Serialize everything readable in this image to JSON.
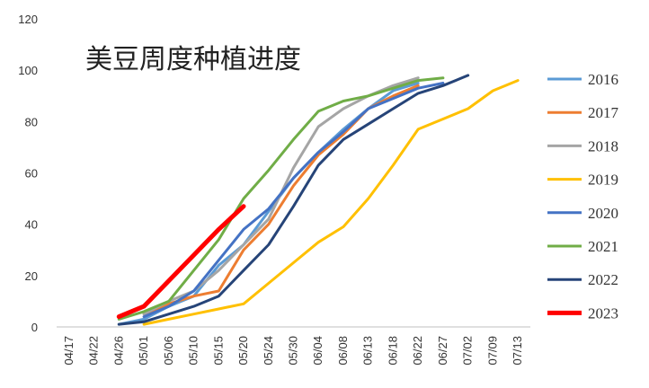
{
  "chart_data": {
    "type": "line",
    "title": "美豆周度种植进度",
    "xlabel": "",
    "ylabel": "",
    "categories": [
      "04/17",
      "04/22",
      "04/26",
      "05/01",
      "05/06",
      "05/10",
      "05/15",
      "05/20",
      "05/24",
      "05/30",
      "06/04",
      "06/08",
      "06/13",
      "06/18",
      "06/22",
      "06/27",
      "07/02",
      "07/09",
      "07/13"
    ],
    "ylim": [
      0,
      120
    ],
    "yticks": [
      "0",
      "20",
      "40",
      "60",
      "80",
      "100",
      "120"
    ],
    "grid": false,
    "legend": "right",
    "series": [
      {
        "name": "2016",
        "color": "#5B9BD5",
        "width": 3,
        "values": [
          null,
          null,
          1,
          3,
          8,
          12,
          24,
          32,
          45,
          58,
          68,
          77,
          85,
          92,
          95,
          null,
          null,
          null,
          null
        ]
      },
      {
        "name": "2017",
        "color": "#ED7D31",
        "width": 3,
        "values": [
          null,
          null,
          null,
          5,
          9,
          12,
          14,
          30,
          40,
          55,
          67,
          75,
          85,
          90,
          94,
          null,
          null,
          null,
          null
        ]
      },
      {
        "name": "2018",
        "color": "#A5A5A5",
        "width": 3,
        "values": [
          null,
          null,
          null,
          5,
          10,
          14,
          22,
          32,
          42,
          62,
          78,
          85,
          90,
          94,
          97,
          null,
          null,
          null,
          null
        ]
      },
      {
        "name": "2019",
        "color": "#FFC000",
        "width": 3,
        "values": [
          null,
          null,
          null,
          1,
          3,
          5,
          7,
          9,
          17,
          25,
          33,
          39,
          50,
          63,
          77,
          81,
          85,
          92,
          96
        ]
      },
      {
        "name": "2020",
        "color": "#4472C4",
        "width": 3,
        "values": [
          null,
          null,
          null,
          4,
          8,
          14,
          26,
          38,
          46,
          58,
          68,
          76,
          85,
          89,
          93,
          95,
          null,
          null,
          null
        ]
      },
      {
        "name": "2021",
        "color": "#70AD47",
        "width": 3,
        "values": [
          null,
          null,
          3,
          6,
          10,
          22,
          34,
          50,
          61,
          73,
          84,
          88,
          90,
          93,
          96,
          97,
          null,
          null,
          null
        ]
      },
      {
        "name": "2022",
        "color": "#264478",
        "width": 3,
        "values": [
          null,
          null,
          1,
          2,
          5,
          8,
          12,
          22,
          32,
          47,
          63,
          73,
          79,
          85,
          91,
          94,
          98,
          null,
          null
        ]
      },
      {
        "name": "2023",
        "color": "#FF0000",
        "width": 5,
        "values": [
          null,
          null,
          4,
          8,
          18,
          28,
          38,
          47,
          null,
          null,
          null,
          null,
          null,
          null,
          null,
          null,
          null,
          null,
          null
        ]
      }
    ]
  }
}
